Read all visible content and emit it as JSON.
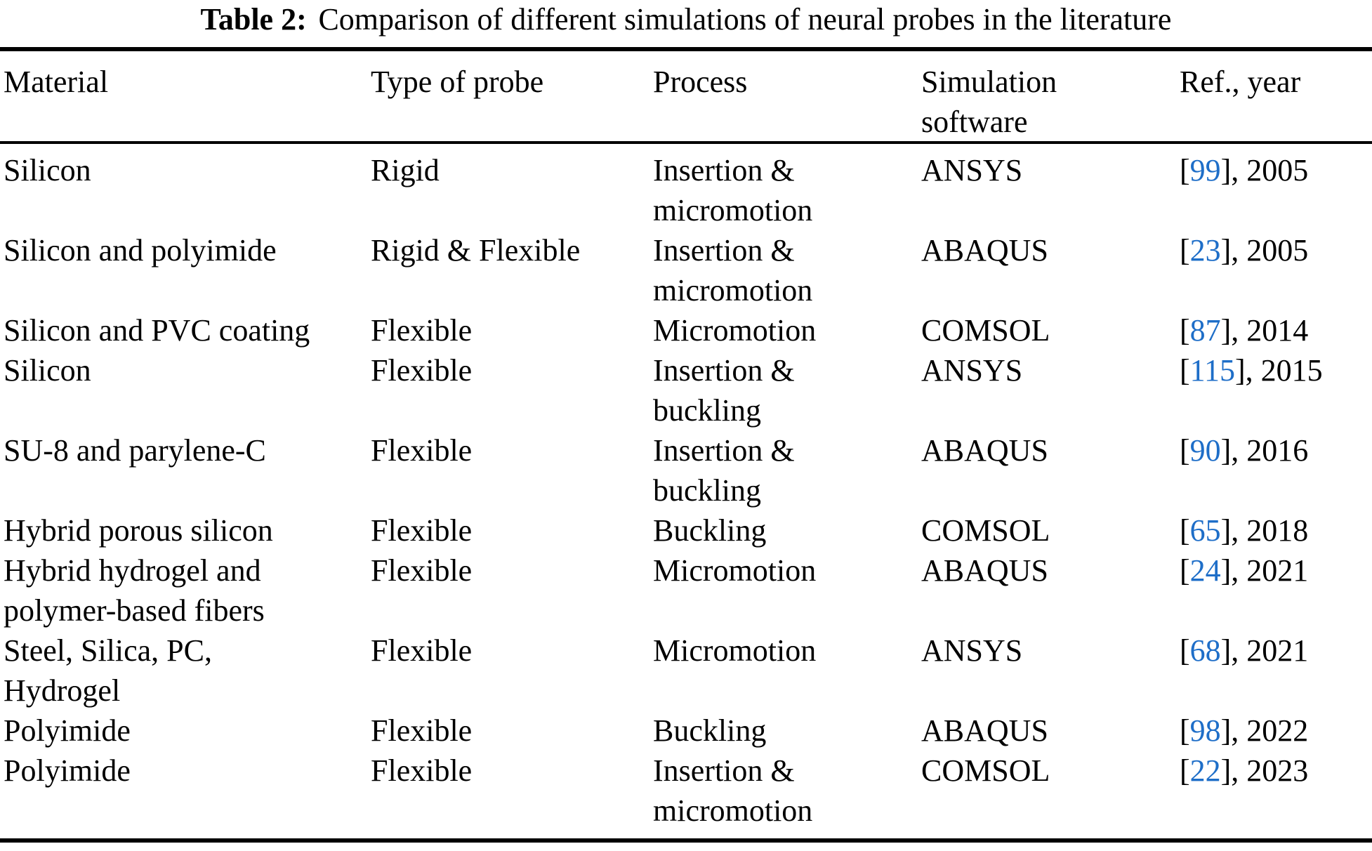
{
  "caption": {
    "label": "Table 2:",
    "text": "Comparison of different simulations of neural probes in the literature"
  },
  "colors": {
    "text": "#000000",
    "citation_blue": "#1e6ec8"
  },
  "table": {
    "open_bracket": "[",
    "headers": [
      "Material",
      "Type of probe",
      "Process",
      "Simulation\nsoftware",
      "Ref., year"
    ],
    "rows": [
      {
        "material": "Silicon",
        "type": "Rigid",
        "process": "Insertion &\nmicromotion",
        "software": "ANSYS",
        "ref_num": "99",
        "ref_tail": "], 2005"
      },
      {
        "material": "Silicon and polyimide",
        "type": "Rigid & Flexible",
        "process": "Insertion &\nmicromotion",
        "software": "ABAQUS",
        "ref_num": "23",
        "ref_tail": "], 2005"
      },
      {
        "material": "Silicon and PVC coating",
        "type": "Flexible",
        "process": "Micromotion",
        "software": "COMSOL",
        "ref_num": "87",
        "ref_tail": "], 2014"
      },
      {
        "material": "Silicon",
        "type": "Flexible",
        "process": "Insertion &\nbuckling",
        "software": "ANSYS",
        "ref_num": "115",
        "ref_tail": "], 2015"
      },
      {
        "material": "SU-8 and parylene-C",
        "type": "Flexible",
        "process": "Insertion &\nbuckling",
        "software": "ABAQUS",
        "ref_num": "90",
        "ref_tail": "], 2016"
      },
      {
        "material": "Hybrid porous silicon",
        "type": "Flexible",
        "process": "Buckling",
        "software": "COMSOL",
        "ref_num": "65",
        "ref_tail": "], 2018"
      },
      {
        "material": "Hybrid hydrogel and\npolymer-based fibers",
        "type": "Flexible",
        "process": "Micromotion",
        "software": "ABAQUS",
        "ref_num": "24",
        "ref_tail": "], 2021"
      },
      {
        "material": "Steel, Silica, PC,\nHydrogel",
        "type": "Flexible",
        "process": "Micromotion",
        "software": "ANSYS",
        "ref_num": "68",
        "ref_tail": "], 2021"
      },
      {
        "material": "Polyimide",
        "type": "Flexible",
        "process": "Buckling",
        "software": "ABAQUS",
        "ref_num": "98",
        "ref_tail": "], 2022"
      },
      {
        "material": "Polyimide",
        "type": "Flexible",
        "process": "Insertion &\nmicromotion",
        "software": "COMSOL",
        "ref_num": "22",
        "ref_tail": "], 2023"
      }
    ]
  }
}
